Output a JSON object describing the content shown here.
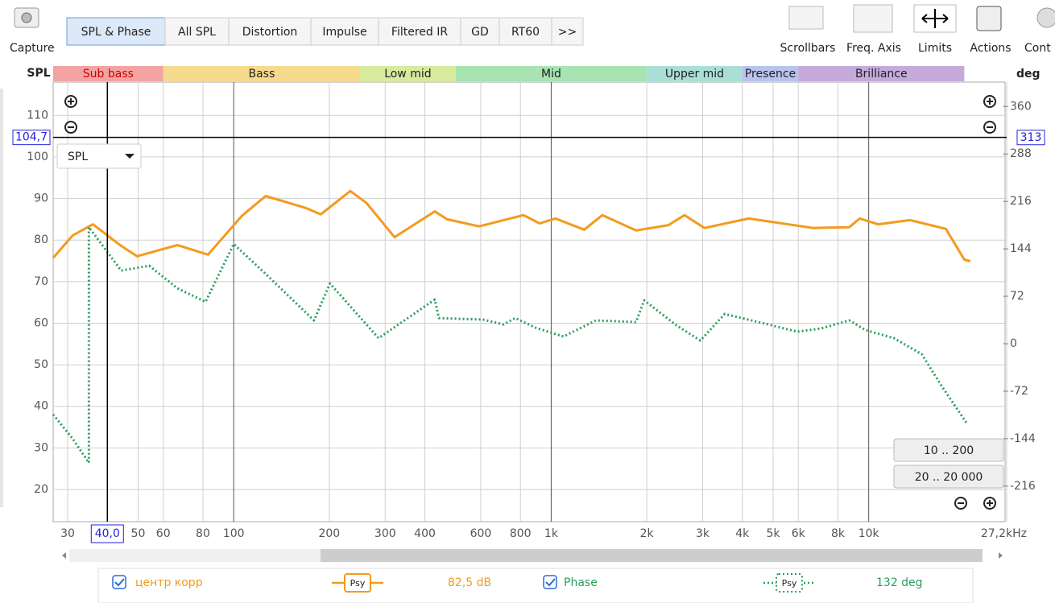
{
  "toolbar": {
    "capture": "Capture",
    "tabs": [
      "SPL & Phase",
      "All SPL",
      "Distortion",
      "Impulse",
      "Filtered IR",
      "GD",
      "RT60",
      ">>"
    ],
    "right": [
      "Scrollbars",
      "Freq. Axis",
      "Limits",
      "Actions",
      "Cont"
    ]
  },
  "ui": {
    "dropdown": "SPL",
    "buttons": [
      "10 .. 200",
      "20 .. 20 000"
    ]
  },
  "chart_data": {
    "type": "line",
    "x_scale": "log",
    "y_label": "SPL",
    "y2_label": "deg",
    "xlim": [
      27,
      27200
    ],
    "ylim": [
      12.25,
      118
    ],
    "y2lim": [
      -270,
      397
    ],
    "xticks": [
      30,
      50,
      60,
      80,
      100,
      200,
      300,
      400,
      600,
      800,
      {
        "value": 1000,
        "label": "1k"
      },
      {
        "value": 2000,
        "label": "2k"
      },
      {
        "value": 3000,
        "label": "3k"
      },
      {
        "value": 4000,
        "label": "4k"
      },
      {
        "value": 5000,
        "label": "5k"
      },
      {
        "value": 6000,
        "label": "6k"
      },
      {
        "value": 8000,
        "label": "8k"
      },
      {
        "value": 10000,
        "label": "10k"
      },
      {
        "value": 27200,
        "label": "27,2kHz"
      }
    ],
    "yticks": [
      20,
      30,
      40,
      50,
      60,
      70,
      80,
      90,
      100,
      110
    ],
    "y2ticks": [
      -216,
      -144,
      -72,
      0,
      72,
      144,
      216,
      288,
      360
    ],
    "grid": true,
    "bands": [
      {
        "name": "Sub bass",
        "from": 20,
        "to": 60,
        "color": "#f4a3a3"
      },
      {
        "name": "Bass",
        "from": 60,
        "to": 250,
        "color": "#f6da8e"
      },
      {
        "name": "Low mid",
        "from": 250,
        "to": 500,
        "color": "#d6eb9c"
      },
      {
        "name": "Mid",
        "from": 500,
        "to": 2000,
        "color": "#a8e3b2"
      },
      {
        "name": "Upper mid",
        "from": 2000,
        "to": 4000,
        "color": "#a9dfd7"
      },
      {
        "name": "Presence",
        "from": 4000,
        "to": 6000,
        "color": "#b9c3ed"
      },
      {
        "name": "Brilliance",
        "from": 6000,
        "to": 20000,
        "color": "#c5aadc"
      }
    ],
    "cursor": {
      "x": 40,
      "x_label": "40,0",
      "y": 104.7,
      "y_label": "104,7",
      "y2": 313
    },
    "series": [
      {
        "name": "центр корр",
        "color": "#f39a1e",
        "axis": "y",
        "style": "solid",
        "x": [
          27,
          31.1,
          36,
          44.2,
          49.6,
          66.5,
          83,
          106,
          126,
          169,
          188,
          233,
          262,
          321,
          430,
          470,
          593,
          818,
          919,
          1030,
          1270,
          1450,
          1850,
          2340,
          2630,
          3040,
          4190,
          6680,
          8690,
          9370,
          10700,
          13500,
          17500,
          20000,
          20900
        ],
        "values": [
          75.7,
          81.1,
          83.8,
          78.6,
          76.1,
          78.8,
          76.5,
          85.8,
          90.6,
          87.7,
          86.2,
          91.8,
          88.9,
          80.7,
          86.9,
          85,
          83.3,
          86,
          84,
          85.2,
          82.5,
          86,
          82.3,
          83.6,
          86,
          82.9,
          85.2,
          82.9,
          83.1,
          85.2,
          83.8,
          84.8,
          82.7,
          75.3,
          74.9
        ]
      },
      {
        "name": "Phase",
        "color": "#2a9d5c",
        "axis": "y2",
        "style": "dotted",
        "x": [
          27,
          31.1,
          35,
          35,
          44.2,
          54.2,
          66.5,
          81.5,
          100,
          126,
          179,
          201,
          286,
          430,
          443,
          611,
          707,
          771,
          892,
          1094,
          1383,
          1850,
          1963,
          2480,
          2950,
          3520,
          4710,
          5950,
          7080,
          8690,
          9770,
          12000,
          14700,
          17000,
          20300
        ],
        "values": [
          -107.4,
          -144,
          -180.7,
          177,
          111,
          118.4,
          84.2,
          63.5,
          151.3,
          106,
          35.4,
          91.5,
          8.5,
          67.1,
          39,
          36.6,
          29.3,
          39,
          24.4,
          11,
          35.4,
          33,
          65.9,
          28,
          4.9,
          45.2,
          30.5,
          18.3,
          23.2,
          35.4,
          20.7,
          8.5,
          -15.9,
          -64.7,
          -119.6
        ]
      }
    ],
    "legend": {
      "icon_label": "Psy",
      "readouts": [
        "82,5 dB",
        "132 deg"
      ]
    }
  }
}
